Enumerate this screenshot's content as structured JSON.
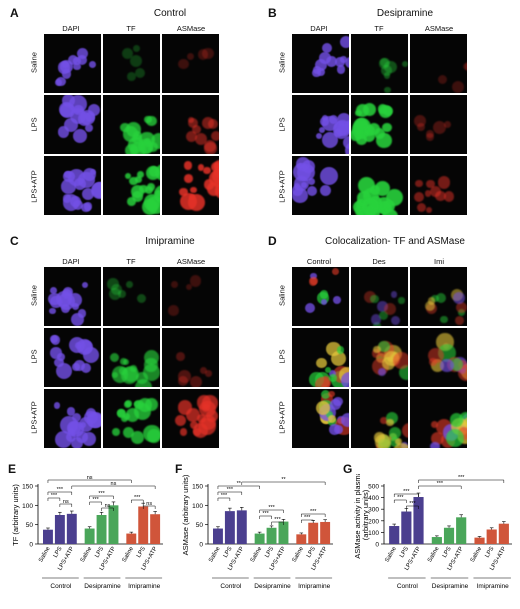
{
  "panels": {
    "A": {
      "letter": "A",
      "title": "Control",
      "cols": [
        "DAPI",
        "TF",
        "ASMase"
      ],
      "rows": [
        "Saline",
        "LPS",
        "LPS+ATP"
      ]
    },
    "B": {
      "letter": "B",
      "title": "Desipramine",
      "cols": [
        "DAPI",
        "TF",
        "ASMase"
      ],
      "rows": [
        "Saline",
        "LPS",
        "LPS+ATP"
      ]
    },
    "C": {
      "letter": "C",
      "title": "Imipramine",
      "cols": [
        "DAPI",
        "TF",
        "ASMase"
      ],
      "rows": [
        "Saline",
        "LPS",
        "LPS+ATP"
      ]
    },
    "D": {
      "letter": "D",
      "title": "Colocalization- TF and ASMase",
      "cols": [
        "Control",
        "Des",
        "Imi"
      ],
      "rows": [
        "Saline",
        "LPS",
        "LPS+ATP"
      ]
    }
  },
  "chart_data": [
    {
      "letter": "E",
      "type": "bar",
      "ylabel": "TF (arbitrary units)",
      "ylim": [
        0,
        150
      ],
      "yticks": [
        0,
        50,
        100,
        150
      ],
      "groups": [
        "Control",
        "Desipramine",
        "Imipramine"
      ],
      "categories": [
        "Saline",
        "LPS",
        "LPS+ATP"
      ],
      "colors": [
        "#4b3f8f",
        "#4aa65a",
        "#d0553a"
      ],
      "values": [
        [
          37,
          75,
          78
        ],
        [
          40,
          75,
          100
        ],
        [
          27,
          97,
          77
        ]
      ],
      "sig": [
        "***",
        "***",
        "ns",
        "***",
        "***",
        "ns",
        "***",
        "ns",
        "ns",
        "ns"
      ]
    },
    {
      "letter": "F",
      "type": "bar",
      "ylabel": "ASMase (arbitrary units)",
      "ylim": [
        0,
        150
      ],
      "yticks": [
        0,
        50,
        100,
        150
      ],
      "groups": [
        "Control",
        "Desipramine",
        "Imipramine"
      ],
      "categories": [
        "Saline",
        "LPS",
        "LPS+ATP"
      ],
      "colors": [
        "#4b3f8f",
        "#4aa65a",
        "#d0553a"
      ],
      "values": [
        [
          40,
          85,
          87
        ],
        [
          27,
          42,
          58
        ],
        [
          25,
          55,
          57
        ]
      ],
      "sig": [
        "***",
        "***",
        "***",
        "***",
        "***",
        "**",
        "**",
        "***",
        "***"
      ]
    },
    {
      "letter": "G",
      "type": "bar",
      "ylabel": "ASMase activity in plasma (arbitrary units)",
      "ylim": [
        0,
        500
      ],
      "yticks": [
        0,
        100,
        200,
        300,
        400,
        500
      ],
      "groups": [
        "Control",
        "Desipramine",
        "Imipramine"
      ],
      "categories": [
        "Saline",
        "LPS",
        "LPS+ATP"
      ],
      "colors": [
        "#4b3f8f",
        "#4aa65a",
        "#d0553a"
      ],
      "values": [
        [
          155,
          280,
          405
        ],
        [
          60,
          140,
          230
        ],
        [
          55,
          125,
          175
        ]
      ],
      "sig": [
        "***",
        "***",
        "***",
        "***",
        "***"
      ]
    }
  ]
}
